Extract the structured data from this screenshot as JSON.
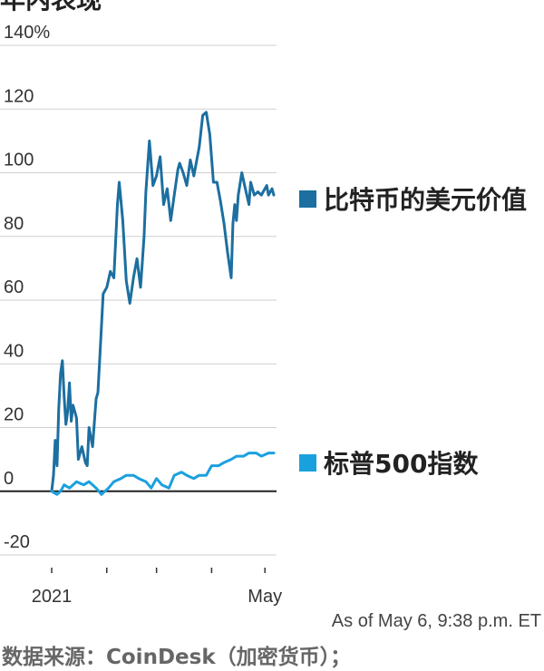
{
  "title": "年内表现",
  "footer": {
    "as_of": "As of May 6, 9:38 p.m. ET",
    "source": "数据来源：CoinDesk（加密货币）；"
  },
  "chart_data": {
    "type": "line",
    "xlabel": "",
    "ylabel": "",
    "ylim": [
      -20,
      140
    ],
    "y_ticks": [
      "140%",
      "120",
      "100",
      "80",
      "60",
      "40",
      "20",
      "0",
      "-20"
    ],
    "y_tick_values": [
      140,
      120,
      100,
      80,
      60,
      40,
      20,
      0,
      -20
    ],
    "x_tick_labels": [
      "2021",
      "May"
    ],
    "x_range": [
      "2021-01-01",
      "2021-05-06"
    ],
    "grid": true,
    "legend": "right",
    "colors": {
      "bitcoin": "#1c6fa0",
      "sp500": "#1ba0de"
    },
    "series": [
      {
        "name": "比特币的美元价值",
        "key": "bitcoin",
        "x": [
          "2021-01-01",
          "2021-01-02",
          "2021-01-03",
          "2021-01-04",
          "2021-01-05",
          "2021-01-06",
          "2021-01-07",
          "2021-01-08",
          "2021-01-09",
          "2021-01-10",
          "2021-01-11",
          "2021-01-12",
          "2021-01-13",
          "2021-01-14",
          "2021-01-15",
          "2021-01-16",
          "2021-01-18",
          "2021-01-20",
          "2021-01-21",
          "2021-01-22",
          "2021-01-24",
          "2021-01-26",
          "2021-01-27",
          "2021-01-28",
          "2021-01-30",
          "2021-02-01",
          "2021-02-03",
          "2021-02-05",
          "2021-02-07",
          "2021-02-08",
          "2021-02-10",
          "2021-02-12",
          "2021-02-14",
          "2021-02-16",
          "2021-02-18",
          "2021-02-20",
          "2021-02-21",
          "2021-02-22",
          "2021-02-23",
          "2021-02-25",
          "2021-02-27",
          "2021-03-01",
          "2021-03-03",
          "2021-03-05",
          "2021-03-07",
          "2021-03-09",
          "2021-03-11",
          "2021-03-13",
          "2021-03-14",
          "2021-03-16",
          "2021-03-18",
          "2021-03-20",
          "2021-03-22",
          "2021-03-24",
          "2021-03-25",
          "2021-03-27",
          "2021-03-29",
          "2021-03-31",
          "2021-04-02",
          "2021-04-04",
          "2021-04-06",
          "2021-04-08",
          "2021-04-10",
          "2021-04-12",
          "2021-04-13",
          "2021-04-14",
          "2021-04-15",
          "2021-04-16",
          "2021-04-18",
          "2021-04-20",
          "2021-04-22",
          "2021-04-23",
          "2021-04-25",
          "2021-04-27",
          "2021-04-29",
          "2021-05-01",
          "2021-05-02",
          "2021-05-03",
          "2021-05-04",
          "2021-05-05",
          "2021-05-06"
        ],
        "values": [
          0,
          5,
          16,
          8,
          26,
          37,
          41,
          30,
          21,
          25,
          34,
          22,
          27,
          25,
          23,
          10,
          14,
          9,
          8,
          20,
          14,
          29,
          31,
          41,
          62,
          64,
          69,
          67,
          90,
          97,
          85,
          66,
          59,
          67,
          73,
          64,
          72,
          80,
          94,
          110,
          96,
          99,
          105,
          90,
          95,
          85,
          93,
          101,
          103,
          100,
          96,
          104,
          99,
          105,
          108,
          118,
          119,
          112,
          97,
          97,
          91,
          84,
          75,
          67,
          84,
          90,
          85,
          93,
          100,
          95,
          90,
          97,
          93,
          94,
          93,
          95,
          96,
          93,
          94,
          95,
          93
        ]
      },
      {
        "name": "标普500指数",
        "key": "sp500",
        "x": [
          "2021-01-01",
          "2021-01-04",
          "2021-01-06",
          "2021-01-08",
          "2021-01-11",
          "2021-01-13",
          "2021-01-15",
          "2021-01-19",
          "2021-01-22",
          "2021-01-26",
          "2021-01-29",
          "2021-02-02",
          "2021-02-05",
          "2021-02-09",
          "2021-02-12",
          "2021-02-16",
          "2021-02-19",
          "2021-02-23",
          "2021-02-26",
          "2021-03-01",
          "2021-03-04",
          "2021-03-08",
          "2021-03-11",
          "2021-03-15",
          "2021-03-18",
          "2021-03-22",
          "2021-03-25",
          "2021-03-29",
          "2021-04-01",
          "2021-04-05",
          "2021-04-08",
          "2021-04-12",
          "2021-04-15",
          "2021-04-19",
          "2021-04-22",
          "2021-04-26",
          "2021-04-29",
          "2021-05-03",
          "2021-05-06"
        ],
        "values": [
          0,
          -1,
          0,
          2,
          1,
          2,
          3,
          2,
          3,
          1,
          -1,
          1,
          3,
          4,
          5,
          5,
          4,
          3,
          1,
          4,
          2,
          1,
          5,
          6,
          5,
          4,
          5,
          5,
          8,
          8,
          9,
          10,
          11,
          11,
          12,
          12,
          11,
          12,
          12
        ]
      }
    ]
  }
}
